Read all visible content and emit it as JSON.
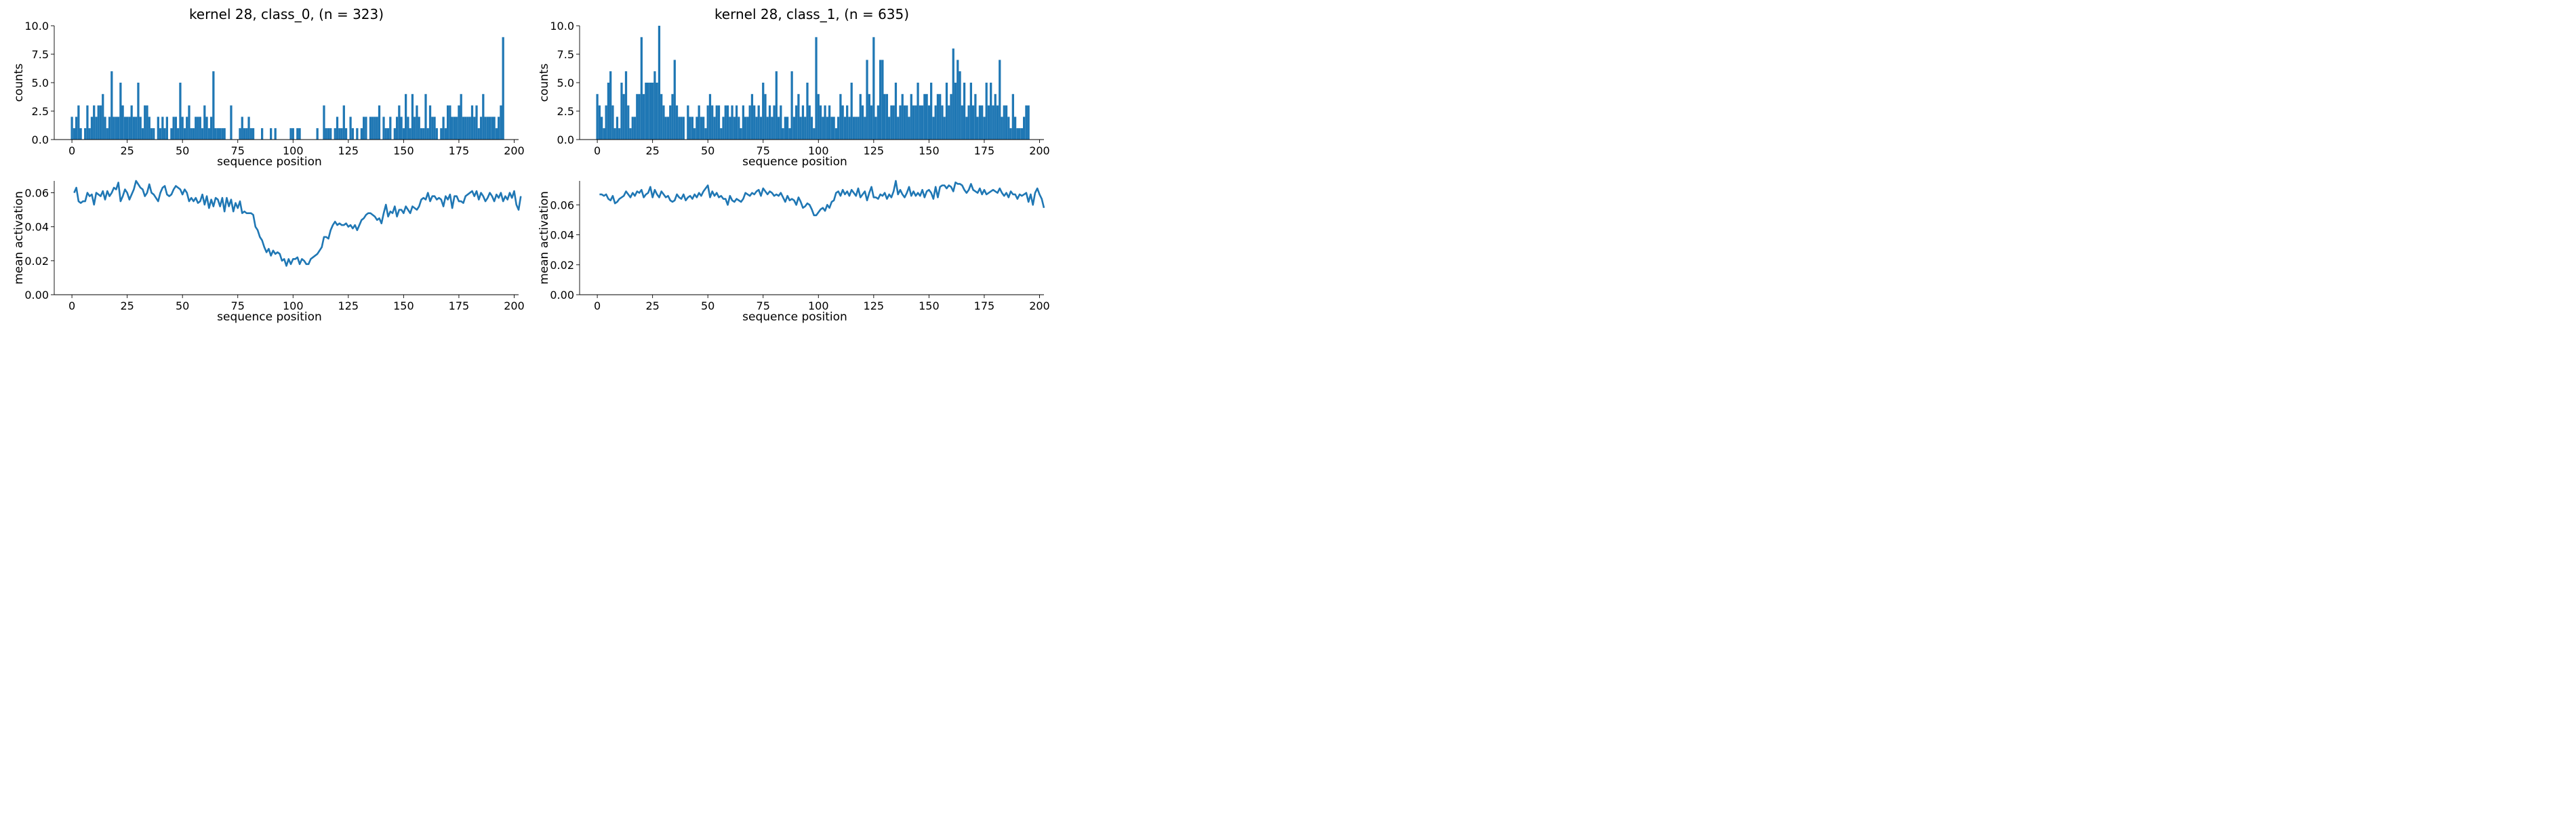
{
  "colors": {
    "series": "#1f77b4",
    "axis": "#000000",
    "background": "#ffffff"
  },
  "chart_data": [
    {
      "type": "bar",
      "title": "kernel 28, class_0, (n = 323)",
      "xlabel": "sequence position",
      "ylabel": "counts",
      "xlim": [
        -8,
        202
      ],
      "ylim": [
        0,
        10
      ],
      "xticks": [
        "0",
        "25",
        "50",
        "75",
        "100",
        "125",
        "150",
        "175",
        "200"
      ],
      "yticks": [
        "0.0",
        "2.5",
        "5.0",
        "7.5",
        "10.0"
      ],
      "grid": false,
      "values": [
        2,
        1,
        2,
        3,
        1,
        0,
        1,
        3,
        1,
        2,
        3,
        2,
        3,
        3,
        4,
        2,
        1,
        2,
        6,
        2,
        2,
        2,
        5,
        3,
        2,
        2,
        2,
        3,
        2,
        2,
        5,
        2,
        1,
        3,
        3,
        2,
        1,
        1,
        0,
        2,
        1,
        2,
        1,
        2,
        0,
        1,
        2,
        2,
        1,
        5,
        2,
        1,
        2,
        3,
        1,
        1,
        2,
        2,
        2,
        1,
        3,
        2,
        1,
        2,
        6,
        1,
        1,
        1,
        1,
        1,
        0,
        0,
        3,
        0,
        0,
        0,
        1,
        2,
        1,
        1,
        2,
        1,
        1,
        0,
        0,
        0,
        1,
        0,
        0,
        0,
        1,
        0,
        1,
        0,
        0,
        0,
        0,
        0,
        0,
        1,
        1,
        0,
        1,
        1,
        0,
        0,
        0,
        0,
        0,
        0,
        0,
        1,
        0,
        0,
        3,
        1,
        1,
        1,
        0,
        1,
        2,
        1,
        1,
        3,
        1,
        0,
        2,
        1,
        0,
        1,
        0,
        1,
        2,
        2,
        0,
        2,
        2,
        2,
        2,
        3,
        0,
        2,
        1,
        1,
        2,
        0,
        1,
        2,
        3,
        2,
        1,
        4,
        2,
        1,
        4,
        2,
        3,
        2,
        1,
        1,
        4,
        1,
        3,
        2,
        2,
        1,
        0,
        1,
        2,
        1,
        3,
        3,
        2,
        2,
        2,
        3,
        4,
        2,
        2,
        2,
        2,
        3,
        2,
        3,
        1,
        2,
        4,
        2,
        2,
        2,
        2,
        2,
        1,
        2,
        3,
        9
      ]
    },
    {
      "type": "bar",
      "title": "kernel 28, class_1, (n = 635)",
      "xlabel": "sequence position",
      "ylabel": "counts",
      "xlim": [
        -8,
        202
      ],
      "ylim": [
        0,
        10
      ],
      "xticks": [
        "0",
        "25",
        "50",
        "75",
        "100",
        "125",
        "150",
        "175",
        "200"
      ],
      "yticks": [
        "0.0",
        "2.5",
        "5.0",
        "7.5",
        "10.0"
      ],
      "grid": false,
      "values": [
        4,
        3,
        2,
        1,
        3,
        5,
        6,
        3,
        1,
        2,
        1,
        5,
        4,
        6,
        3,
        1,
        2,
        2,
        4,
        4,
        9,
        4,
        5,
        5,
        5,
        5,
        6,
        5,
        10,
        4,
        3,
        2,
        2,
        3,
        4,
        7,
        3,
        2,
        2,
        2,
        0,
        3,
        2,
        2,
        1,
        2,
        3,
        2,
        2,
        1,
        3,
        4,
        3,
        2,
        3,
        3,
        1,
        2,
        3,
        3,
        2,
        3,
        2,
        3,
        2,
        1,
        3,
        2,
        2,
        3,
        4,
        3,
        2,
        3,
        2,
        5,
        4,
        2,
        3,
        2,
        3,
        6,
        2,
        3,
        1,
        2,
        2,
        1,
        6,
        2,
        3,
        4,
        2,
        3,
        2,
        5,
        3,
        2,
        1,
        9,
        4,
        3,
        2,
        3,
        2,
        3,
        2,
        2,
        1,
        2,
        4,
        3,
        2,
        3,
        2,
        5,
        2,
        2,
        2,
        4,
        3,
        2,
        7,
        4,
        3,
        9,
        2,
        3,
        7,
        7,
        4,
        4,
        2,
        3,
        3,
        5,
        2,
        3,
        4,
        3,
        3,
        2,
        4,
        3,
        3,
        5,
        3,
        3,
        4,
        4,
        3,
        5,
        2,
        3,
        4,
        4,
        3,
        2,
        5,
        3,
        4,
        8,
        5,
        7,
        6,
        3,
        5,
        2,
        3,
        5,
        3,
        4,
        2,
        3,
        3,
        2,
        5,
        3,
        5,
        3,
        4,
        3,
        7,
        2,
        3,
        3,
        2,
        1,
        4,
        2,
        1,
        1,
        1,
        2,
        3,
        3
      ]
    },
    {
      "type": "line",
      "xlabel": "sequence position",
      "ylabel": "mean activation",
      "xlim": [
        -8,
        202
      ],
      "ylim": [
        0,
        0.067
      ],
      "xticks": [
        "0",
        "25",
        "50",
        "75",
        "100",
        "125",
        "150",
        "175",
        "200"
      ],
      "yticks": [
        "0.00",
        "0.02",
        "0.04",
        "0.06"
      ],
      "grid": false,
      "x_start": 1,
      "values": [
        0.06,
        0.063,
        0.055,
        0.054,
        0.055,
        0.055,
        0.06,
        0.058,
        0.059,
        0.053,
        0.06,
        0.059,
        0.058,
        0.061,
        0.056,
        0.061,
        0.058,
        0.06,
        0.063,
        0.062,
        0.066,
        0.055,
        0.058,
        0.062,
        0.06,
        0.056,
        0.059,
        0.062,
        0.067,
        0.065,
        0.063,
        0.062,
        0.058,
        0.06,
        0.065,
        0.06,
        0.059,
        0.057,
        0.055,
        0.06,
        0.063,
        0.064,
        0.059,
        0.058,
        0.059,
        0.062,
        0.064,
        0.063,
        0.062,
        0.059,
        0.062,
        0.06,
        0.055,
        0.057,
        0.055,
        0.057,
        0.054,
        0.055,
        0.059,
        0.053,
        0.058,
        0.051,
        0.056,
        0.052,
        0.057,
        0.056,
        0.052,
        0.057,
        0.049,
        0.057,
        0.052,
        0.056,
        0.049,
        0.054,
        0.051,
        0.055,
        0.048,
        0.049,
        0.048,
        0.048,
        0.048,
        0.047,
        0.04,
        0.038,
        0.034,
        0.032,
        0.028,
        0.025,
        0.027,
        0.023,
        0.026,
        0.024,
        0.025,
        0.024,
        0.02,
        0.021,
        0.017,
        0.021,
        0.018,
        0.021,
        0.021,
        0.022,
        0.018,
        0.021,
        0.02,
        0.018,
        0.018,
        0.021,
        0.022,
        0.023,
        0.024,
        0.026,
        0.028,
        0.034,
        0.034,
        0.033,
        0.038,
        0.041,
        0.043,
        0.041,
        0.042,
        0.041,
        0.041,
        0.042,
        0.04,
        0.041,
        0.039,
        0.041,
        0.038,
        0.041,
        0.044,
        0.045,
        0.047,
        0.048,
        0.048,
        0.047,
        0.046,
        0.044,
        0.045,
        0.042,
        0.048,
        0.053,
        0.046,
        0.049,
        0.048,
        0.052,
        0.046,
        0.05,
        0.05,
        0.048,
        0.052,
        0.05,
        0.048,
        0.052,
        0.051,
        0.05,
        0.052,
        0.056,
        0.057,
        0.056,
        0.06,
        0.055,
        0.058,
        0.058,
        0.056,
        0.057,
        0.056,
        0.052,
        0.058,
        0.056,
        0.059,
        0.051,
        0.058,
        0.058,
        0.055,
        0.055,
        0.054,
        0.058,
        0.059,
        0.06,
        0.061,
        0.058,
        0.061,
        0.056,
        0.06,
        0.058,
        0.055,
        0.057,
        0.06,
        0.058,
        0.055,
        0.059,
        0.057,
        0.06,
        0.055,
        0.058,
        0.056,
        0.06,
        0.057,
        0.061,
        0.053,
        0.05,
        0.058
      ]
    },
    {
      "type": "line",
      "xlabel": "sequence position",
      "ylabel": "mean activation",
      "xlim": [
        -8,
        202
      ],
      "ylim": [
        0,
        0.076
      ],
      "xticks": [
        "0",
        "25",
        "50",
        "75",
        "100",
        "125",
        "150",
        "175",
        "200"
      ],
      "yticks": [
        "0.00",
        "0.02",
        "0.04",
        "0.06"
      ],
      "grid": false,
      "x_start": 1,
      "values": [
        0.067,
        0.067,
        0.066,
        0.067,
        0.064,
        0.063,
        0.066,
        0.061,
        0.062,
        0.064,
        0.065,
        0.066,
        0.069,
        0.067,
        0.065,
        0.068,
        0.066,
        0.069,
        0.068,
        0.07,
        0.065,
        0.067,
        0.068,
        0.072,
        0.065,
        0.07,
        0.067,
        0.065,
        0.069,
        0.067,
        0.065,
        0.066,
        0.063,
        0.062,
        0.063,
        0.067,
        0.065,
        0.064,
        0.067,
        0.063,
        0.065,
        0.066,
        0.064,
        0.067,
        0.065,
        0.068,
        0.066,
        0.069,
        0.071,
        0.073,
        0.065,
        0.069,
        0.066,
        0.068,
        0.065,
        0.066,
        0.064,
        0.064,
        0.06,
        0.066,
        0.063,
        0.062,
        0.064,
        0.063,
        0.062,
        0.064,
        0.068,
        0.067,
        0.066,
        0.068,
        0.067,
        0.069,
        0.07,
        0.066,
        0.071,
        0.069,
        0.067,
        0.069,
        0.068,
        0.066,
        0.067,
        0.066,
        0.068,
        0.065,
        0.062,
        0.066,
        0.063,
        0.064,
        0.063,
        0.06,
        0.065,
        0.062,
        0.058,
        0.059,
        0.061,
        0.06,
        0.057,
        0.053,
        0.053,
        0.055,
        0.057,
        0.058,
        0.056,
        0.06,
        0.058,
        0.062,
        0.063,
        0.068,
        0.069,
        0.066,
        0.07,
        0.067,
        0.069,
        0.066,
        0.07,
        0.068,
        0.066,
        0.071,
        0.065,
        0.067,
        0.069,
        0.063,
        0.068,
        0.072,
        0.065,
        0.065,
        0.064,
        0.067,
        0.066,
        0.068,
        0.064,
        0.067,
        0.065,
        0.069,
        0.076,
        0.067,
        0.07,
        0.067,
        0.065,
        0.068,
        0.072,
        0.066,
        0.069,
        0.066,
        0.068,
        0.066,
        0.07,
        0.065,
        0.069,
        0.07,
        0.068,
        0.064,
        0.072,
        0.065,
        0.072,
        0.073,
        0.073,
        0.071,
        0.073,
        0.072,
        0.069,
        0.075,
        0.074,
        0.074,
        0.073,
        0.07,
        0.068,
        0.07,
        0.074,
        0.07,
        0.069,
        0.068,
        0.071,
        0.067,
        0.07,
        0.067,
        0.068,
        0.069,
        0.07,
        0.069,
        0.068,
        0.071,
        0.068,
        0.066,
        0.068,
        0.065,
        0.069,
        0.067,
        0.067,
        0.064,
        0.067,
        0.066,
        0.067,
        0.068,
        0.062,
        0.067,
        0.06,
        0.068,
        0.071,
        0.067,
        0.064,
        0.058
      ]
    }
  ]
}
